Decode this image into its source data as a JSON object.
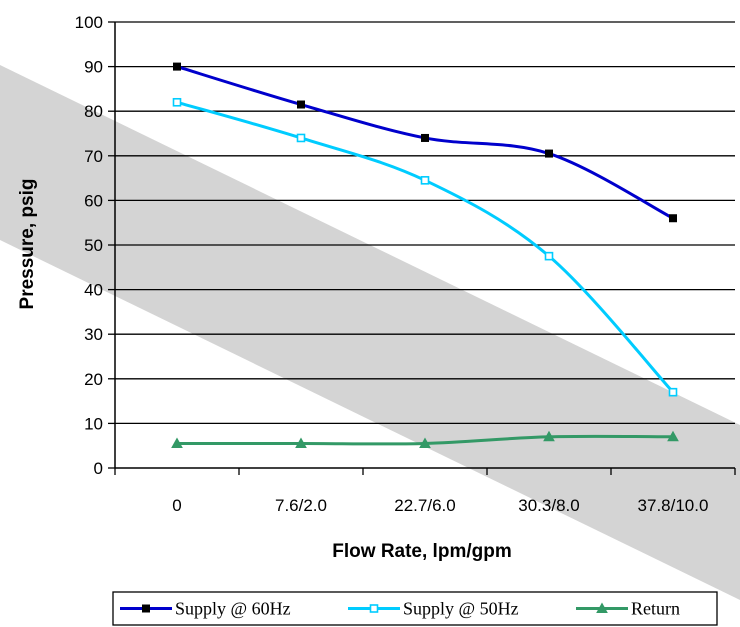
{
  "chart_data": {
    "type": "line",
    "xlabel": "Flow Rate, lpm/gpm",
    "ylabel": "Pressure, psig",
    "categories": [
      "0",
      "7.6/2.0",
      "22.7/6.0",
      "30.3/8.0",
      "37.8/10.0"
    ],
    "ylim": [
      0,
      100
    ],
    "yticks": [
      "0",
      "10",
      "20",
      "30",
      "40",
      "50",
      "60",
      "70",
      "80",
      "90",
      "100"
    ],
    "grid": "horizontal",
    "legend_position": "bottom",
    "series": [
      {
        "name": "Supply @ 60Hz",
        "values": [
          90,
          81.5,
          74,
          70.5,
          56
        ],
        "color": "#0000cc",
        "marker": "square-filled"
      },
      {
        "name": "Supply @ 50Hz",
        "values": [
          82,
          74,
          64.5,
          47.5,
          17
        ],
        "color": "#00ccff",
        "marker": "square-open"
      },
      {
        "name": "Return",
        "values": [
          5.5,
          5.5,
          5.5,
          7,
          7
        ],
        "color": "#339966",
        "marker": "triangle"
      }
    ]
  }
}
